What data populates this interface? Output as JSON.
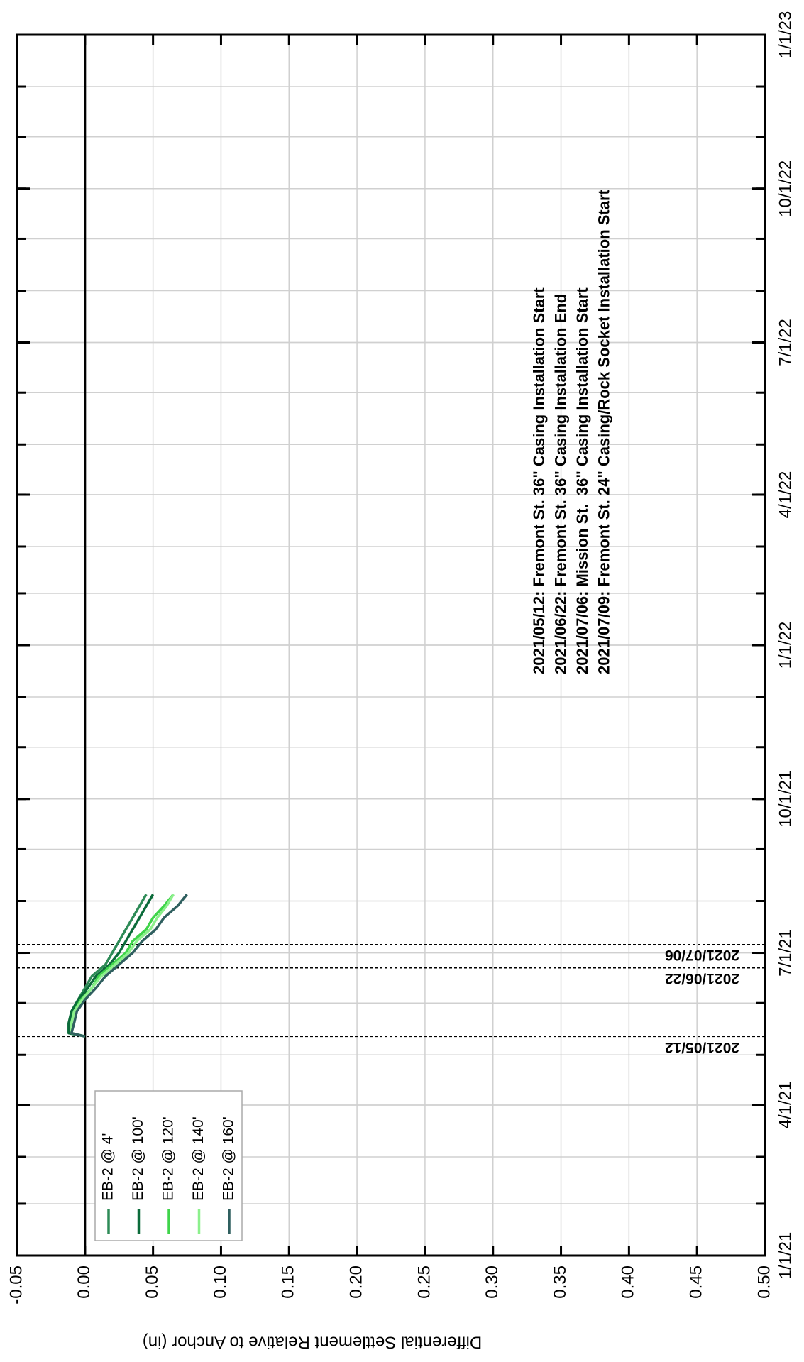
{
  "chart_data": {
    "type": "line",
    "y_label": "Differential Settlement Relative to Anchor (in)",
    "x": [
      "2021-05-12",
      "2021-05-14",
      "2021-05-20",
      "2021-05-27",
      "2021-06-03",
      "2021-06-10",
      "2021-06-17",
      "2021-06-24",
      "2021-07-01",
      "2021-07-08",
      "2021-07-15",
      "2021-07-22",
      "2021-07-29",
      "2021-08-05"
    ],
    "series": [
      {
        "name": "EB-2 @ 4'",
        "color": "#2e8b57",
        "values": [
          0,
          -0.01,
          -0.01,
          -0.01,
          -0.005,
          0.0,
          0.005,
          0.015,
          0.02,
          0.025,
          0.03,
          0.035,
          0.04,
          0.045
        ]
      },
      {
        "name": "EB-2 @ 100'",
        "color": "#0b6b3a",
        "values": [
          0,
          -0.012,
          -0.012,
          -0.01,
          -0.005,
          0.002,
          0.008,
          0.018,
          0.025,
          0.03,
          0.035,
          0.04,
          0.045,
          0.05
        ]
      },
      {
        "name": "EB-2 @ 120'",
        "color": "#3fd44a",
        "values": [
          0,
          -0.01,
          -0.01,
          -0.008,
          -0.003,
          0.005,
          0.01,
          0.02,
          0.03,
          0.035,
          0.045,
          0.05,
          0.058,
          0.065
        ]
      },
      {
        "name": "EB-2 @ 140'",
        "color": "#8cf08c",
        "values": [
          0,
          -0.01,
          -0.01,
          -0.008,
          -0.002,
          0.005,
          0.012,
          0.022,
          0.032,
          0.038,
          0.048,
          0.053,
          0.06,
          0.065
        ]
      },
      {
        "name": "EB-2 @ 160'",
        "color": "#2f5f5f",
        "values": [
          0,
          -0.01,
          -0.008,
          -0.006,
          0.0,
          0.008,
          0.015,
          0.025,
          0.035,
          0.042,
          0.052,
          0.058,
          0.068,
          0.075
        ]
      }
    ],
    "xlim": [
      "2021-01-01",
      "2023-01-01"
    ],
    "xticks": [
      {
        "value": "2021-01-01",
        "label": "1/1/21"
      },
      {
        "value": "2021-04-01",
        "label": "4/1/21"
      },
      {
        "value": "2021-07-01",
        "label": "7/1/21"
      },
      {
        "value": "2021-10-01",
        "label": "10/1/21"
      },
      {
        "value": "2022-01-01",
        "label": "1/1/22"
      },
      {
        "value": "2022-04-01",
        "label": "4/1/22"
      },
      {
        "value": "2022-07-01",
        "label": "7/1/22"
      },
      {
        "value": "2022-10-01",
        "label": "10/1/22"
      },
      {
        "value": "2023-01-01",
        "label": "1/1/23"
      }
    ],
    "ylim": [
      -0.05,
      0.5
    ],
    "yticks": [
      -0.05,
      {
        "value": 0,
        "label": "0.00"
      },
      0.05,
      {
        "value": 0.1,
        "label": "0.10"
      },
      0.15,
      {
        "value": 0.2,
        "label": "0.20"
      },
      0.25,
      {
        "value": 0.3,
        "label": "0.30"
      },
      0.35,
      {
        "value": 0.4,
        "label": "0.40"
      },
      0.45,
      {
        "value": 0.5,
        "label": "0.50"
      }
    ],
    "grid": true,
    "events": [
      "2021/05/12",
      "2021/06/22",
      "2021/07/06"
    ],
    "annotations": [
      "2021/05/12: Fremont St. 36\" Casing Installation Start",
      "2021/06/22: Fremont St. 36\" Casing Installation End",
      "2021/07/06: Mission St.  36\" Casing Installation Start",
      "2021/07/09: Fremont St. 24\" Casing/Rock Socket Installation Start"
    ]
  }
}
